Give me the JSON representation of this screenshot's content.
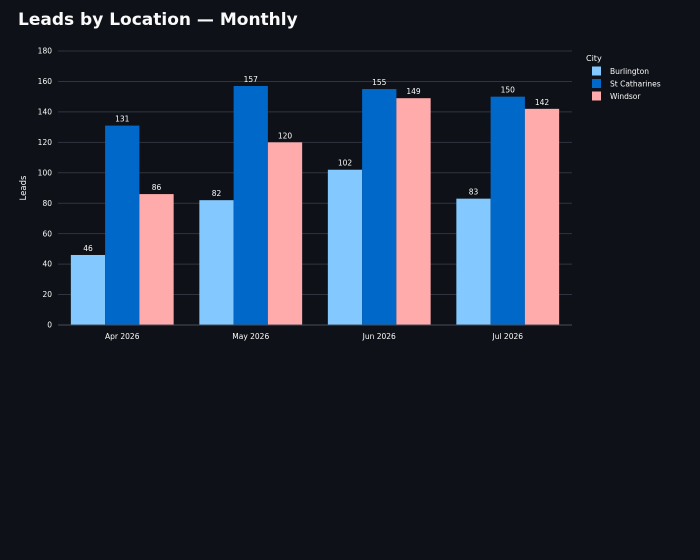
{
  "page": {
    "title": "Leads by Location — Monthly"
  },
  "chart_data": {
    "type": "bar",
    "title": "Leads by Location — Monthly",
    "xlabel": "",
    "ylabel": "Leads",
    "ylim": [
      0,
      180
    ],
    "yticks": [
      0,
      20,
      40,
      60,
      80,
      100,
      120,
      140,
      160,
      180
    ],
    "grid": true,
    "legend": {
      "title": "City",
      "placement": "top-right"
    },
    "categories": [
      "Apr 2026",
      "May 2026",
      "Jun 2026",
      "Jul 2026"
    ],
    "series": [
      {
        "name": "Burlington",
        "color": "#83c9ff",
        "values": [
          46,
          82,
          102,
          83
        ]
      },
      {
        "name": "St Catharines",
        "color": "#0068c9",
        "values": [
          131,
          157,
          155,
          150
        ]
      },
      {
        "name": "Windsor",
        "color": "#ffabab",
        "values": [
          86,
          120,
          149,
          142
        ]
      }
    ]
  }
}
